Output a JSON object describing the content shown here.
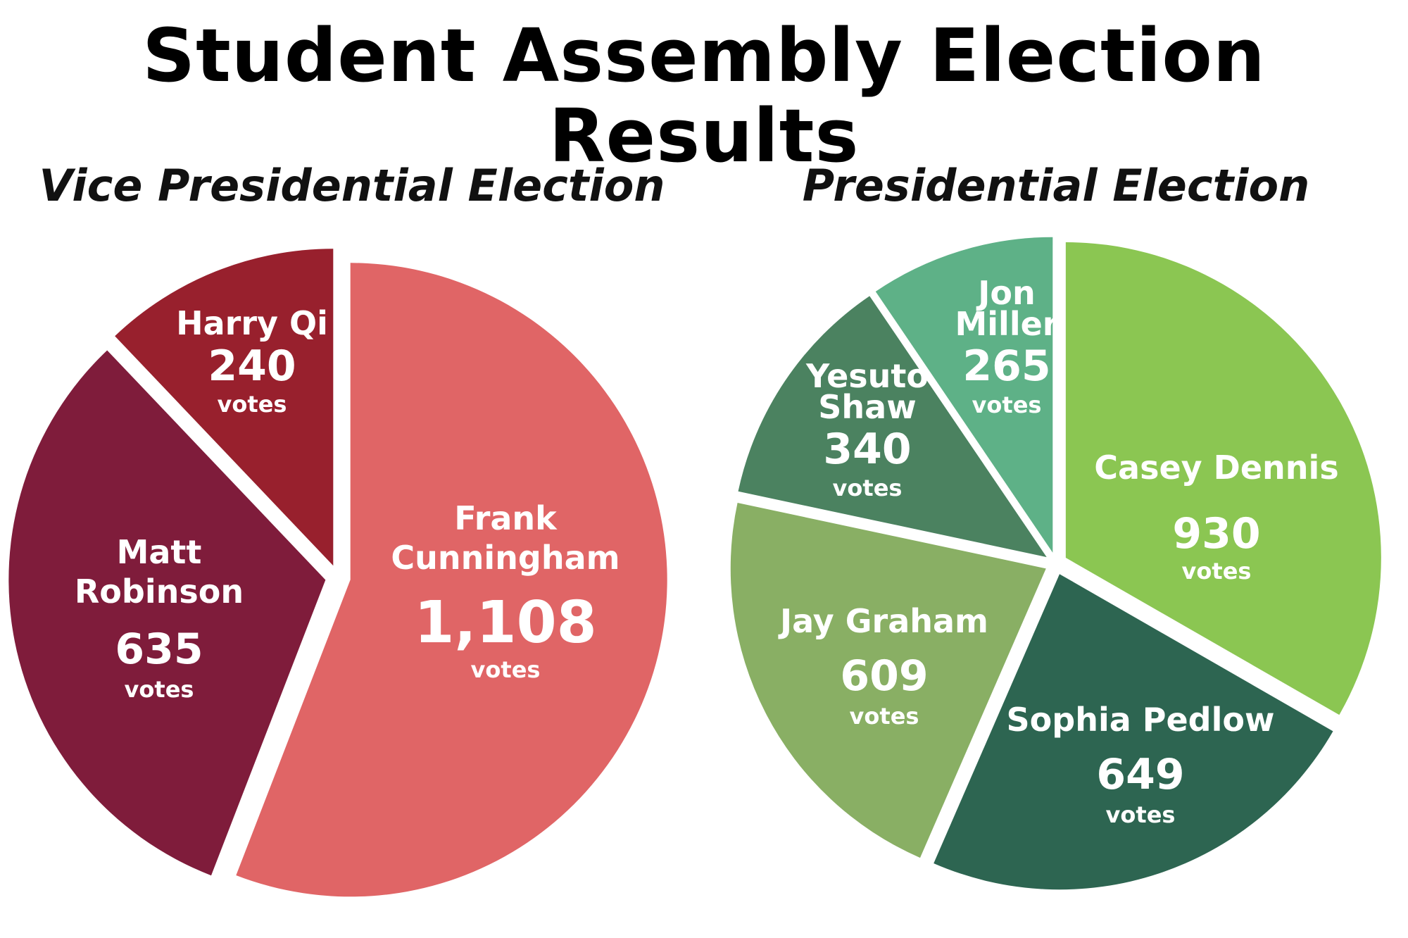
{
  "title": "Student Assembly Election Results",
  "chart_data": [
    {
      "type": "pie",
      "title": "Vice Presidential Election",
      "unit_label": "votes",
      "slices": [
        {
          "name_lines": [
            "Frank",
            "Cunningham"
          ],
          "value": 1108,
          "value_label": "1,108",
          "color": "#e06566"
        },
        {
          "name_lines": [
            "Matt",
            "Robinson"
          ],
          "value": 635,
          "value_label": "635",
          "color": "#7f1c3b"
        },
        {
          "name_lines": [
            "Harry Qi"
          ],
          "value": 240,
          "value_label": "240",
          "color": "#98202d"
        }
      ]
    },
    {
      "type": "pie",
      "title": "Presidential Election",
      "unit_label": "votes",
      "slices": [
        {
          "name_lines": [
            "Casey Dennis"
          ],
          "value": 930,
          "value_label": "930",
          "color": "#8bc652"
        },
        {
          "name_lines": [
            "Sophia Pedlow"
          ],
          "value": 649,
          "value_label": "649",
          "color": "#2d6551"
        },
        {
          "name_lines": [
            "Jay Graham"
          ],
          "value": 609,
          "value_label": "609",
          "color": "#89af64"
        },
        {
          "name_lines": [
            "Yesuto",
            "Shaw"
          ],
          "value": 340,
          "value_label": "340",
          "color": "#4b8260"
        },
        {
          "name_lines": [
            "Jon",
            "Miller"
          ],
          "value": 265,
          "value_label": "265",
          "color": "#5eb187"
        }
      ]
    }
  ]
}
